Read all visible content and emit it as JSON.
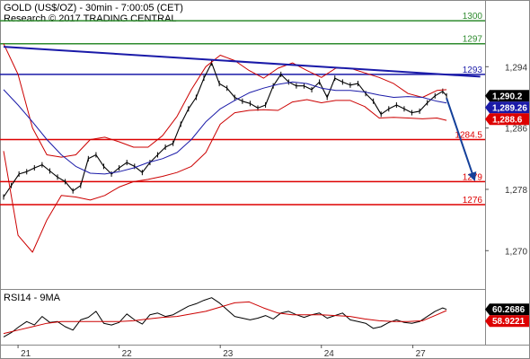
{
  "header": {
    "title": "GOLD (US$/OZ) - 30min - 7:00:05 (CET)",
    "source": "Research © 2017 TRADING CENTRAL"
  },
  "indicator_label": "RSI14 - 9MA",
  "colors": {
    "price": "#000000",
    "bollinger": "#cc0000",
    "ma": "#1a1aa8",
    "resistance": "#2e8b2e",
    "pivot": "#1a1aa8",
    "support": "#dd0000",
    "trendline": "#1a1aa8",
    "arrow": "#14409a",
    "tag_dark": "#000000",
    "tag_blue": "#1a1aa8",
    "tag_red": "#dd0000"
  },
  "chart_data": [
    {
      "type": "line",
      "ylim": [
        1265,
        1302
      ],
      "yticks": [
        1270,
        1278,
        1286,
        1294
      ],
      "ytick_labels": [
        "1,270",
        "1,278",
        "1,286",
        "1,294"
      ],
      "xlim": [
        0,
        5.0
      ],
      "xticks": [
        0.15,
        1.2,
        2.25,
        3.3,
        4.25
      ],
      "xtick_labels": [
        "21",
        "22",
        "23",
        "24",
        "27"
      ],
      "levels": [
        {
          "value": 1300,
          "label": "1300",
          "kind": "resistance"
        },
        {
          "value": 1297,
          "label": "1297",
          "kind": "resistance"
        },
        {
          "value": 1293,
          "label": "1293",
          "kind": "pivot"
        },
        {
          "value": 1284.5,
          "label": "1284.5",
          "kind": "support"
        },
        {
          "value": 1279,
          "label": "1279",
          "kind": "support"
        },
        {
          "value": 1276,
          "label": "1276",
          "kind": "support"
        }
      ],
      "trendline": {
        "x": [
          0.0,
          4.95
        ],
        "y": [
          1296.6,
          1292.7
        ]
      },
      "forecast_arrow": {
        "x": [
          4.6,
          4.88
        ],
        "y": [
          1289.9,
          1279.6
        ]
      },
      "tags": [
        {
          "value": 1290.2,
          "label": "1,290.2",
          "style": "dark"
        },
        {
          "value": 1289.26,
          "label": "1,289.26",
          "style": "blue"
        },
        {
          "value": 1288.6,
          "label": "1,288.6",
          "style": "red"
        }
      ],
      "series": [
        {
          "kind": "price",
          "x": [
            0.0,
            0.08,
            0.16,
            0.24,
            0.32,
            0.4,
            0.48,
            0.56,
            0.64,
            0.72,
            0.8,
            0.88,
            0.96,
            1.04,
            1.12,
            1.2,
            1.28,
            1.36,
            1.44,
            1.52,
            1.6,
            1.68,
            1.76,
            1.84,
            1.92,
            2.0,
            2.08,
            2.16,
            2.24,
            2.32,
            2.4,
            2.48,
            2.56,
            2.64,
            2.72,
            2.8,
            2.88,
            2.96,
            3.04,
            3.12,
            3.2,
            3.28,
            3.36,
            3.44,
            3.52,
            3.6,
            3.68,
            3.76,
            3.84,
            3.92,
            4.0,
            4.08,
            4.16,
            4.24,
            4.32,
            4.4,
            4.48,
            4.56,
            4.6
          ],
          "y": [
            1277.0,
            1278.5,
            1280.0,
            1280.3,
            1280.8,
            1281.2,
            1280.4,
            1279.6,
            1279.0,
            1277.8,
            1278.5,
            1282.0,
            1282.5,
            1281.0,
            1280.0,
            1280.8,
            1281.5,
            1281.0,
            1280.2,
            1281.5,
            1282.5,
            1283.5,
            1284.0,
            1286.5,
            1288.5,
            1290.0,
            1292.5,
            1294.5,
            1291.8,
            1291.2,
            1290.0,
            1289.5,
            1289.2,
            1288.6,
            1289.0,
            1291.5,
            1293.0,
            1292.0,
            1291.5,
            1291.5,
            1291.0,
            1292.0,
            1290.0,
            1292.5,
            1292.0,
            1291.6,
            1291.8,
            1290.5,
            1289.5,
            1287.8,
            1288.5,
            1289.0,
            1288.5,
            1288.0,
            1288.2,
            1289.3,
            1290.2,
            1290.8,
            1290.2
          ]
        },
        {
          "kind": "bollinger_upper",
          "x": [
            0.0,
            0.15,
            0.3,
            0.45,
            0.6,
            0.75,
            0.9,
            1.05,
            1.2,
            1.35,
            1.5,
            1.65,
            1.8,
            1.95,
            2.1,
            2.25,
            2.4,
            2.55,
            2.7,
            2.85,
            3.0,
            3.15,
            3.3,
            3.45,
            3.6,
            3.75,
            3.9,
            4.05,
            4.2,
            4.35,
            4.5,
            4.6
          ],
          "y": [
            1297.0,
            1293.0,
            1286.0,
            1282.5,
            1282.2,
            1282.5,
            1284.5,
            1284.8,
            1284.2,
            1283.5,
            1283.5,
            1285.0,
            1287.5,
            1291.0,
            1294.0,
            1295.5,
            1294.8,
            1293.5,
            1292.5,
            1293.8,
            1294.5,
            1293.5,
            1292.6,
            1293.8,
            1293.8,
            1293.2,
            1292.6,
            1291.8,
            1290.5,
            1290.0,
            1290.9,
            1291.0
          ]
        },
        {
          "kind": "bollinger_lower",
          "x": [
            0.0,
            0.15,
            0.3,
            0.45,
            0.6,
            0.75,
            0.9,
            1.05,
            1.2,
            1.35,
            1.5,
            1.65,
            1.8,
            1.95,
            2.1,
            2.25,
            2.4,
            2.55,
            2.7,
            2.85,
            3.0,
            3.15,
            3.3,
            3.45,
            3.6,
            3.75,
            3.9,
            4.05,
            4.2,
            4.35,
            4.5,
            4.6
          ],
          "y": [
            1283.0,
            1272.0,
            1269.8,
            1274.0,
            1277.2,
            1277.0,
            1276.6,
            1277.2,
            1278.3,
            1279.0,
            1279.3,
            1279.7,
            1280.2,
            1281.0,
            1282.8,
            1286.5,
            1288.0,
            1288.3,
            1288.4,
            1288.3,
            1289.4,
            1289.7,
            1289.3,
            1289.6,
            1289.6,
            1288.8,
            1287.3,
            1287.4,
            1287.3,
            1287.2,
            1287.3,
            1287.0
          ]
        },
        {
          "kind": "ma",
          "x": [
            0.0,
            0.15,
            0.3,
            0.45,
            0.6,
            0.75,
            0.9,
            1.05,
            1.2,
            1.35,
            1.5,
            1.65,
            1.8,
            1.95,
            2.1,
            2.25,
            2.4,
            2.55,
            2.7,
            2.85,
            3.0,
            3.15,
            3.3,
            3.45,
            3.6,
            3.75,
            3.9,
            4.05,
            4.2,
            4.35,
            4.5,
            4.6
          ],
          "y": [
            1291.0,
            1289.0,
            1286.8,
            1284.5,
            1282.5,
            1281.0,
            1280.1,
            1280.0,
            1280.3,
            1280.8,
            1281.5,
            1282.0,
            1282.8,
            1284.5,
            1286.8,
            1288.5,
            1289.6,
            1290.6,
            1291.2,
            1291.7,
            1292.0,
            1291.8,
            1291.2,
            1290.9,
            1290.9,
            1290.7,
            1290.3,
            1290.0,
            1290.1,
            1290.0,
            1289.5,
            1289.26
          ]
        }
      ]
    },
    {
      "type": "line",
      "title": "RSI14 - 9MA",
      "ylim": [
        20,
        80
      ],
      "tags": [
        {
          "value": 60.2686,
          "label": "60.2686",
          "style": "dark"
        },
        {
          "value": 58.9221,
          "label": "58.9221",
          "style": "red"
        }
      ],
      "series": [
        {
          "kind": "rsi",
          "x": [
            0.0,
            0.08,
            0.16,
            0.24,
            0.32,
            0.4,
            0.48,
            0.56,
            0.64,
            0.72,
            0.8,
            0.88,
            0.96,
            1.04,
            1.12,
            1.2,
            1.28,
            1.36,
            1.44,
            1.52,
            1.6,
            1.68,
            1.76,
            1.84,
            1.92,
            2.0,
            2.08,
            2.16,
            2.24,
            2.32,
            2.4,
            2.48,
            2.56,
            2.64,
            2.72,
            2.8,
            2.88,
            2.96,
            3.04,
            3.12,
            3.2,
            3.28,
            3.36,
            3.44,
            3.52,
            3.6,
            3.68,
            3.76,
            3.84,
            3.92,
            4.0,
            4.08,
            4.16,
            4.24,
            4.32,
            4.4,
            4.48,
            4.56,
            4.6
          ],
          "y": [
            28,
            33,
            40,
            46,
            42,
            52,
            45,
            46,
            40,
            36,
            48,
            51,
            58,
            44,
            42,
            45,
            55,
            48,
            43,
            54,
            56,
            52,
            54,
            59,
            64,
            67,
            71,
            74,
            68,
            60,
            52,
            50,
            48,
            50,
            53,
            49,
            56,
            58,
            54,
            51,
            54,
            56,
            50,
            53,
            56,
            48,
            46,
            44,
            38,
            40,
            45,
            48,
            45,
            44,
            46,
            52,
            58,
            62,
            60.2686
          ]
        },
        {
          "kind": "rsi_ma",
          "x": [
            0.0,
            0.15,
            0.3,
            0.45,
            0.6,
            0.75,
            0.9,
            1.05,
            1.2,
            1.35,
            1.5,
            1.65,
            1.8,
            1.95,
            2.1,
            2.25,
            2.4,
            2.55,
            2.7,
            2.85,
            3.0,
            3.15,
            3.3,
            3.45,
            3.6,
            3.75,
            3.9,
            4.05,
            4.2,
            4.35,
            4.5,
            4.6
          ],
          "y": [
            32,
            36,
            40,
            44,
            46,
            46,
            46,
            46,
            46,
            47,
            49,
            51,
            52,
            55,
            58,
            63,
            68,
            69,
            62,
            56,
            54,
            54,
            54,
            53,
            52,
            49,
            47,
            46,
            46,
            47,
            54,
            58.9221
          ]
        }
      ]
    }
  ]
}
